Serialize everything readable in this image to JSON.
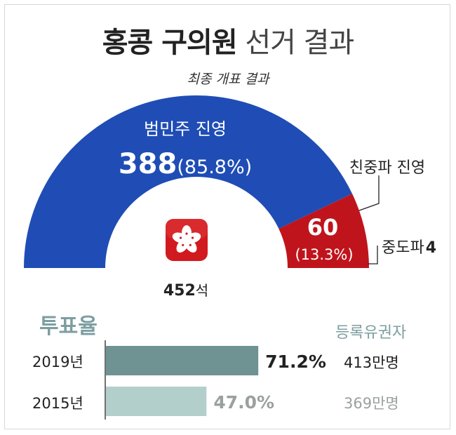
{
  "title": {
    "bold": "홍콩 구의원",
    "light": "선거 결과"
  },
  "subtitle": "최종 개표 결과",
  "chart_data": [
    {
      "type": "pie",
      "total_seats": 452,
      "series": [
        {
          "name": "범민주 진영",
          "value": 388,
          "percent_label": "(85.8%)",
          "value_label": "388",
          "color": "#1f4db5"
        },
        {
          "name": "친중파 진영",
          "value": 60,
          "percent_label": "(13.3%)",
          "value_label": "60",
          "color": "#c0141c"
        },
        {
          "name": "중도파",
          "value": 4,
          "value_label": "4",
          "color": "#c0141c"
        }
      ],
      "seats_value": "452",
      "seats_unit": "석"
    },
    {
      "type": "bar",
      "title": "투표율",
      "categories": [
        "2019년",
        "2015년"
      ],
      "values": [
        71.2,
        47.0
      ],
      "value_labels": [
        "71.2%",
        "47.0%"
      ],
      "colors": [
        "#6f9293",
        "#b3cfcc"
      ],
      "label_colors": [
        "#222222",
        "#9aa0a0"
      ],
      "xlim": [
        0,
        100
      ],
      "registered_voters_title": "등록유권자",
      "registered_voters": [
        "413만명",
        "369만명"
      ],
      "registered_colors": [
        "#222222",
        "#9aa0a0"
      ]
    }
  ],
  "colors": {
    "blue": "#1f4db5",
    "red": "#c0141c",
    "teal_dark": "#6f9293",
    "teal_light": "#b3cfcc",
    "accent_text": "#7d9ea0"
  },
  "icons": [
    "hongkong-flag-icon"
  ]
}
